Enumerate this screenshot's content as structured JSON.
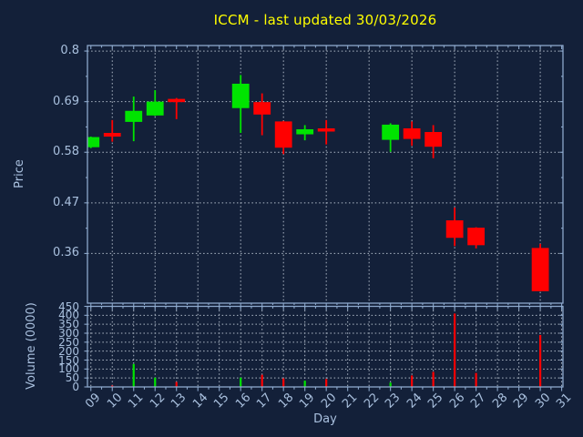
{
  "title": {
    "text": "ICCM - last updated 30/03/2026"
  },
  "colors": {
    "background": "#132039",
    "title": "#FFFF00",
    "spine": "#8CA8CC",
    "tick_label": "#A9C0DE",
    "grid": "#AFB9C7",
    "up": "#00E400",
    "down": "#FF0000"
  },
  "price_axis": {
    "label": "Price",
    "tick_values": [
      0.8,
      0.69,
      0.58,
      0.47,
      0.36
    ],
    "tick_labels": [
      "0.8",
      "0.69",
      "0.58",
      "0.47",
      "0.36"
    ]
  },
  "volume_axis": {
    "label": "Volume (0000)",
    "tick_values": [
      450,
      400,
      350,
      300,
      250,
      200,
      150,
      100,
      50,
      0
    ],
    "tick_labels": [
      "450",
      "400",
      "350",
      "300",
      "250",
      "200",
      "150",
      "100",
      "50",
      "0"
    ]
  },
  "x_axis": {
    "label": "Day",
    "tick_values": [
      9,
      10,
      11,
      12,
      13,
      14,
      15,
      16,
      17,
      18,
      19,
      20,
      21,
      22,
      23,
      24,
      25,
      26,
      27,
      28,
      29,
      30,
      31
    ],
    "tick_labels": [
      "09",
      "10",
      "11",
      "12",
      "13",
      "14",
      "15",
      "16",
      "17",
      "18",
      "19",
      "20",
      "21",
      "22",
      "23",
      "24",
      "25",
      "26",
      "27",
      "28",
      "29",
      "30",
      "31"
    ]
  },
  "chart_data": {
    "type": "candlestick",
    "symbol": "ICCM",
    "last_updated": "30/03/2026",
    "title": "ICCM - last updated 30/03/2026",
    "xlabel": "Day",
    "price_ylabel": "Price",
    "volume_ylabel": "Volume (0000)",
    "grid": true,
    "price_ylim": [
      0.252,
      0.812
    ],
    "volume_ylim": [
      0,
      450
    ],
    "x_range": [
      9,
      31
    ],
    "price_ticks": [
      0.8,
      0.69,
      0.58,
      0.47,
      0.36
    ],
    "volume_ticks": [
      450,
      400,
      350,
      300,
      250,
      200,
      150,
      100,
      50,
      0
    ],
    "candles": [
      {
        "day": 9,
        "open": 0.591,
        "high": 0.614,
        "low": 0.589,
        "close": 0.613,
        "volume": 2
      },
      {
        "day": 10,
        "open": 0.622,
        "high": 0.65,
        "low": 0.603,
        "close": 0.614,
        "volume": 8
      },
      {
        "day": 11,
        "open": 0.646,
        "high": 0.701,
        "low": 0.604,
        "close": 0.67,
        "volume": 128
      },
      {
        "day": 12,
        "open": 0.66,
        "high": 0.715,
        "low": 0.659,
        "close": 0.69,
        "volume": 52
      },
      {
        "day": 13,
        "open": 0.696,
        "high": 0.698,
        "low": 0.652,
        "close": 0.689,
        "volume": 28
      },
      {
        "day": 16,
        "open": 0.676,
        "high": 0.748,
        "low": 0.622,
        "close": 0.729,
        "volume": 52
      },
      {
        "day": 17,
        "open": 0.689,
        "high": 0.708,
        "low": 0.617,
        "close": 0.662,
        "volume": 68
      },
      {
        "day": 18,
        "open": 0.647,
        "high": 0.648,
        "low": 0.576,
        "close": 0.59,
        "volume": 48
      },
      {
        "day": 19,
        "open": 0.619,
        "high": 0.639,
        "low": 0.606,
        "close": 0.63,
        "volume": 35
      },
      {
        "day": 20,
        "open": 0.632,
        "high": 0.65,
        "low": 0.597,
        "close": 0.625,
        "volume": 44
      },
      {
        "day": 23,
        "open": 0.607,
        "high": 0.643,
        "low": 0.581,
        "close": 0.64,
        "volume": 24
      },
      {
        "day": 24,
        "open": 0.632,
        "high": 0.647,
        "low": 0.594,
        "close": 0.609,
        "volume": 64
      },
      {
        "day": 25,
        "open": 0.624,
        "high": 0.639,
        "low": 0.567,
        "close": 0.592,
        "volume": 84
      },
      {
        "day": 26,
        "open": 0.432,
        "high": 0.46,
        "low": 0.376,
        "close": 0.394,
        "volume": 410
      },
      {
        "day": 27,
        "open": 0.416,
        "high": 0.417,
        "low": 0.371,
        "close": 0.378,
        "volume": 78
      },
      {
        "day": 30,
        "open": 0.372,
        "high": 0.381,
        "low": 0.278,
        "close": 0.278,
        "volume": 290
      }
    ]
  }
}
